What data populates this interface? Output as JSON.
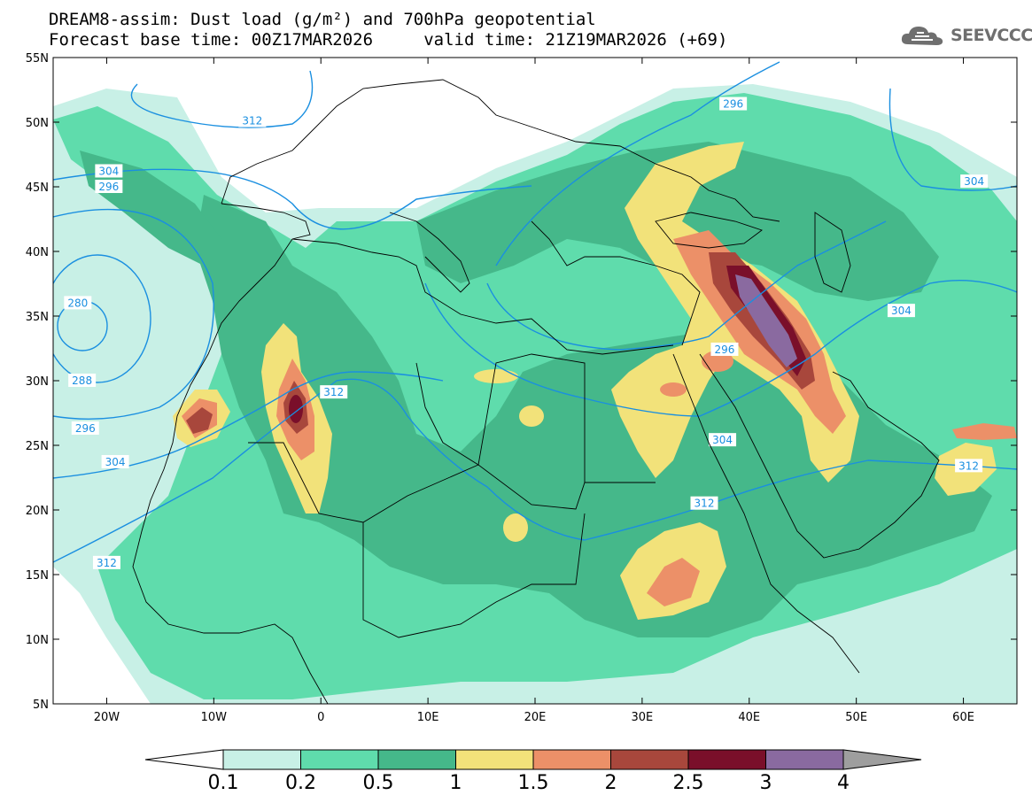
{
  "header": {
    "title_line1": "DREAM8-assim: Dust load (g/m²) and 700hPa geopotential",
    "title_line2": "Forecast base time: 00Z17MAR2026     valid time: 21Z19MAR2026 (+69)",
    "logo_text": "SEEVCCC"
  },
  "axes": {
    "lat_labels": [
      "55N",
      "50N",
      "45N",
      "40N",
      "35N",
      "30N",
      "25N",
      "20N",
      "15N",
      "10N",
      "5N"
    ],
    "lon_labels": [
      "20W",
      "10W",
      "0",
      "10E",
      "20E",
      "30E",
      "40E",
      "50E",
      "60E"
    ]
  },
  "geopotential_contours": {
    "labels": [
      {
        "text": "280",
        "lon": -22.7,
        "lat": 36.0
      },
      {
        "text": "288",
        "lon": -22.3,
        "lat": 30.0
      },
      {
        "text": "296",
        "lon": -22.0,
        "lat": 26.3
      },
      {
        "text": "296",
        "lon": -19.8,
        "lat": 45.0
      },
      {
        "text": "304",
        "lon": -19.8,
        "lat": 46.2
      },
      {
        "text": "304",
        "lon": -19.2,
        "lat": 23.7
      },
      {
        "text": "312",
        "lon": -20.0,
        "lat": 15.9
      },
      {
        "text": "312",
        "lon": -6.4,
        "lat": 50.1
      },
      {
        "text": "312",
        "lon": 1.2,
        "lat": 29.1
      },
      {
        "text": "296",
        "lon": 38.5,
        "lat": 51.4
      },
      {
        "text": "296",
        "lon": 37.7,
        "lat": 32.4
      },
      {
        "text": "304",
        "lon": 37.5,
        "lat": 25.4
      },
      {
        "text": "312",
        "lon": 35.8,
        "lat": 20.5
      },
      {
        "text": "304",
        "lon": 54.2,
        "lat": 35.4
      },
      {
        "text": "304",
        "lon": 61.0,
        "lat": 45.4
      },
      {
        "text": "312",
        "lon": 60.5,
        "lat": 23.4
      }
    ]
  },
  "colorbar": {
    "labels": [
      "0.1",
      "0.2",
      "0.5",
      "1",
      "1.5",
      "2",
      "2.5",
      "3",
      "4"
    ],
    "colors": [
      "#c8f0e6",
      "#5fdcac",
      "#45b88a",
      "#f2e27a",
      "#ec9068",
      "#a8473c",
      "#7a0f2a",
      "#8a6aa0"
    ],
    "over_color": "#9e9e9e",
    "under_color": "#ffffff"
  },
  "colors": {
    "contour": "#1a8fe0",
    "land_background": "#ffffff",
    "boundary": "#000000"
  }
}
